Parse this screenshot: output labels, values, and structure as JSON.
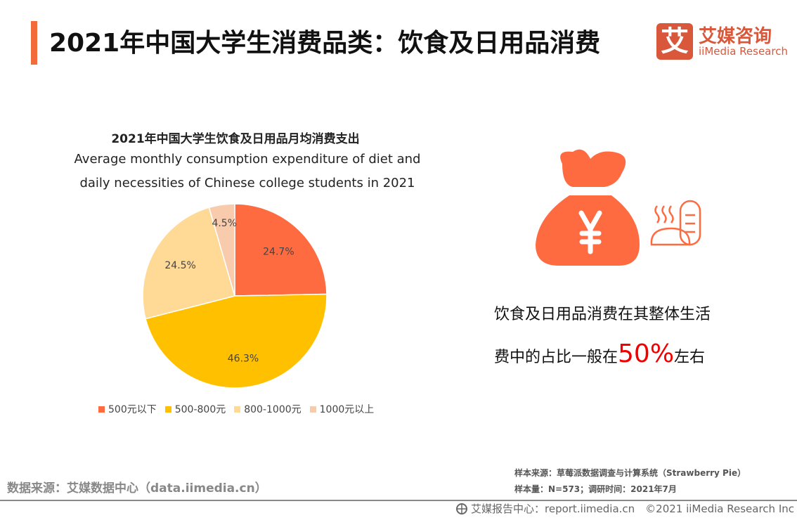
{
  "header": {
    "title": "2021年中国大学生消费品类：饮食及日用品消费",
    "logo_cn": "艾媒咨询",
    "logo_en": "iiMedia Research",
    "logo_mark": "艾"
  },
  "chart_data": {
    "type": "pie",
    "title": "2021年中国大学生饮食及日用品月均消费支出",
    "subtitle_lines": [
      "Average monthly consumption expenditure of diet and",
      "daily necessities of Chinese college students in 2021"
    ],
    "categories": [
      "500元以下",
      "500-800元",
      "800-1000元",
      "1000元以上"
    ],
    "values": [
      24.7,
      46.3,
      24.5,
      4.5
    ],
    "labels": [
      "24.7%",
      "46.3%",
      "24.5%",
      "4.5%"
    ],
    "colors": [
      "#FF6B40",
      "#FFC000",
      "#FFDA96",
      "#F8CBAD"
    ],
    "legend_position": "bottom"
  },
  "callout": {
    "line1": "饮食及日用品消费在其整体生活",
    "line2_pre": "费中的占比一般在",
    "highlight": "50%",
    "line2_post": "左右"
  },
  "source": {
    "left": "数据来源：艾媒数据中心（data.iimedia.cn）",
    "sample_source": "样本来源：草莓派数据调查与计算系统（Strawberry Pie）",
    "sample_size": "样本量：N=573；调研时间：2021年7月"
  },
  "footer": {
    "text": "艾媒报告中心：report.iimedia.cn　©2021  iiMedia Research  Inc"
  },
  "icons": [
    "money-bag-yuan-icon",
    "bread-icon",
    "globe-icon"
  ]
}
